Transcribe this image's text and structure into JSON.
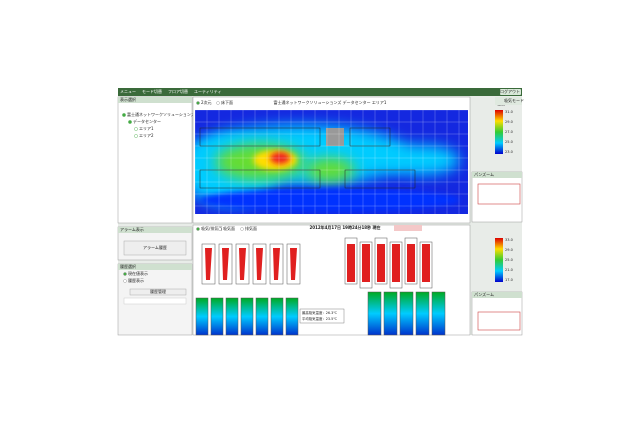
{
  "menu": {
    "items": [
      "メニュー",
      "モード切替",
      "フロア切替",
      "ユーティリティ"
    ],
    "logout": "ログアウト"
  },
  "left": {
    "title": "表示選択",
    "tree": [
      "富士通ネットワークソリューションズ",
      "データセンター",
      "エリア1",
      "エリア2"
    ],
    "alarm_title": "アラーム表示",
    "alarm_button": "アラーム履歴",
    "history_title": "履歴選択",
    "history_options": [
      "現在値表示",
      "履歴表示"
    ],
    "history_button": "履歴管理"
  },
  "top_view": {
    "options": [
      "2次元",
      "床下面"
    ],
    "title": "富士通ネットワークソリューションズ データセンター エリア1",
    "legend_title": "温度",
    "legend_labels": [
      "31.0",
      "29.0",
      "27.0",
      "25.0",
      "23.0"
    ],
    "side_title": "吸気モード"
  },
  "bottom_view": {
    "options": [
      "吸気/排気面",
      "吸気面",
      "排気面"
    ],
    "timestamp": "2012年4月17日 19時24分18秒 現在",
    "legend_labels": [
      "33.0",
      "29.0",
      "25.0",
      "21.0",
      "17.0"
    ],
    "tooltip": [
      "最高吸気温度：26.3℃",
      "平均吸気温度：23.5℃"
    ]
  },
  "pan": {
    "title": "パンズーム"
  }
}
